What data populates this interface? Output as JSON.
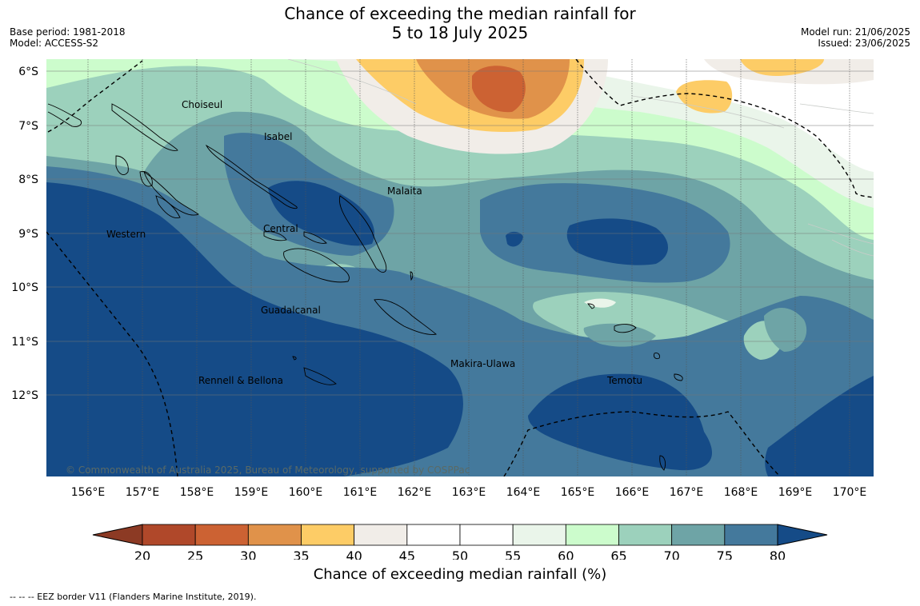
{
  "header": {
    "title_line1": "Chance of exceeding the median rainfall for",
    "title_line2": "5 to 18 July 2025",
    "base_period": "Base period: 1981-2018",
    "model": "Model: ACCESS-S2",
    "model_run": "Model run: 21/06/2025",
    "issued": "Issued: 23/06/2025"
  },
  "map": {
    "copyright": "© Commonwealth of Australia 2025, Bureau of Meteorology, supported by COSPPac",
    "lon_labels": [
      "156°E",
      "157°E",
      "158°E",
      "159°E",
      "160°E",
      "161°E",
      "162°E",
      "163°E",
      "164°E",
      "165°E",
      "166°E",
      "167°E",
      "168°E",
      "169°E",
      "170°E"
    ],
    "lat_labels": [
      "6°S",
      "7°S",
      "8°S",
      "9°S",
      "10°S",
      "11°S",
      "12°S"
    ],
    "regions": [
      "Choiseul",
      "Isabel",
      "Malaita",
      "Western",
      "Central",
      "Guadalcanal",
      "Makira-Ulawa",
      "Rennell & Bellona",
      "Temotu"
    ]
  },
  "colorbar": {
    "ticks": [
      "20",
      "25",
      "30",
      "35",
      "40",
      "45",
      "50",
      "55",
      "60",
      "65",
      "70",
      "75",
      "80"
    ],
    "colors": [
      "#b0482a",
      "#cc6233",
      "#e0924a",
      "#fdcc66",
      "#f1ede8",
      "#ffffff",
      "#ffffff",
      "#eaf5ea",
      "#ccfccc",
      "#9cd1bc",
      "#6ea4a6",
      "#44799c",
      "#154b87"
    ],
    "under_color": "#8c3a24",
    "over_color": "#154b87",
    "title": "Chance of exceeding median rainfall (%)"
  },
  "footnote": "--  --  -- EEZ border V11 (Flanders Marine Institute, 2019)."
}
